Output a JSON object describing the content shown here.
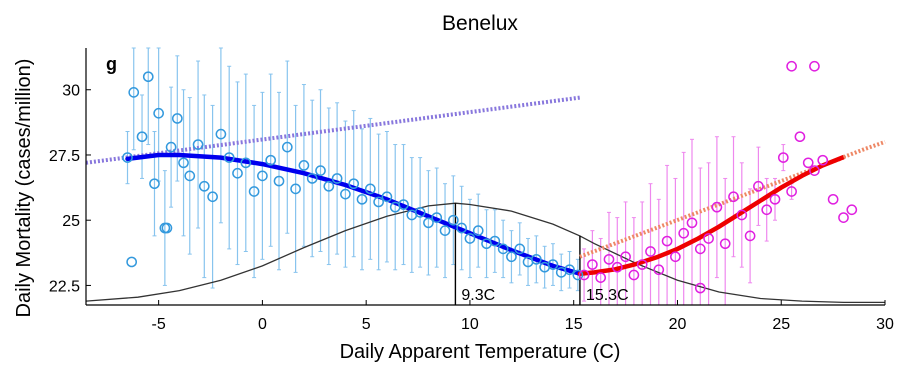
{
  "chart_data": {
    "type": "scatter",
    "title": "Benelux",
    "panel_label": "g",
    "xlabel": "Daily Apparent Temperature (C)",
    "ylabel": "Daily Mortality (cases/million)",
    "xlim": [
      -8.5,
      30
    ],
    "ylim": [
      21.75,
      31.6
    ],
    "xticks": [
      -5,
      0,
      5,
      10,
      15,
      20,
      25,
      30
    ],
    "yticks": [
      22.5,
      25,
      27.5,
      30
    ],
    "ytick_labels": [
      "22.5",
      "25",
      "27.5",
      "30"
    ],
    "grid": false,
    "thresholds": [
      {
        "x": 9.3,
        "label": "9.3C"
      },
      {
        "x": 15.3,
        "label": "15.3C"
      }
    ],
    "colors": {
      "cold_points": "#3399dd",
      "cold_errorbars": "#88c4ee",
      "hot_points": "#e020e0",
      "hot_errorbars": "#ee88ee",
      "cold_fit": "#0000ee",
      "hot_fit": "#ee0000",
      "cold_linear": "#8877dd",
      "hot_linear": "#ee8866",
      "density": "#333333"
    },
    "series": [
      {
        "role": "cold_observations",
        "x": [
          -6.5,
          -6.2,
          -5.8,
          -5.5,
          -5.2,
          -5.0,
          -4.7,
          -4.4,
          -4.1,
          -3.8,
          -3.5,
          -3.1,
          -2.8,
          -2.4,
          -2.0,
          -1.6,
          -1.2,
          -0.8,
          -0.4,
          0.0,
          0.4,
          0.8,
          1.2,
          1.6,
          2.0,
          2.4,
          2.8,
          3.2,
          3.6,
          4.0,
          4.4,
          4.8,
          5.2,
          5.6,
          6.0,
          6.4,
          6.8,
          7.2,
          7.6,
          8.0,
          8.4,
          8.8,
          9.2,
          9.6,
          10.0,
          10.4,
          10.8,
          11.2,
          11.6,
          12.0,
          12.4,
          12.8,
          13.2,
          13.6,
          14.0,
          14.4,
          14.8,
          15.2
        ],
        "y": [
          27.4,
          29.9,
          28.2,
          30.5,
          26.4,
          29.1,
          24.7,
          27.8,
          28.9,
          27.2,
          26.7,
          27.9,
          26.3,
          25.9,
          28.3,
          27.4,
          26.8,
          27.2,
          26.1,
          26.7,
          27.3,
          26.5,
          27.8,
          26.2,
          27.1,
          26.6,
          26.9,
          26.3,
          26.6,
          26.0,
          26.4,
          25.8,
          26.2,
          25.7,
          25.9,
          25.5,
          25.6,
          25.2,
          25.3,
          24.9,
          25.1,
          24.6,
          25.0,
          24.7,
          24.3,
          24.6,
          24.1,
          24.2,
          23.9,
          23.6,
          23.9,
          23.4,
          23.5,
          23.2,
          23.3,
          23.0,
          23.1,
          22.9
        ],
        "error": [
          1.0,
          2.2,
          1.6,
          2.6,
          2.0,
          2.6,
          2.2,
          2.3,
          2.4,
          2.8,
          3.0,
          3.2,
          3.5,
          3.5,
          3.4,
          3.5,
          3.5,
          3.4,
          3.3,
          3.2,
          3.3,
          3.4,
          3.3,
          3.2,
          3.1,
          3.0,
          3.1,
          3.0,
          2.9,
          2.8,
          2.8,
          2.7,
          2.7,
          2.6,
          2.5,
          2.4,
          2.3,
          2.2,
          2.1,
          2.0,
          1.9,
          1.8,
          1.7,
          1.6,
          1.5,
          1.4,
          1.3,
          1.2,
          1.1,
          1.0,
          1.0,
          0.9,
          0.9,
          0.8,
          0.8,
          0.7,
          0.7,
          0.6
        ]
      },
      {
        "role": "hot_observations",
        "x": [
          15.5,
          15.9,
          16.3,
          16.7,
          17.1,
          17.5,
          17.9,
          18.3,
          18.7,
          19.1,
          19.5,
          19.9,
          20.3,
          20.7,
          21.1,
          21.5,
          21.9,
          22.3,
          22.7,
          23.1,
          23.5,
          23.9,
          24.3,
          24.7,
          25.1,
          25.5,
          25.9,
          26.3,
          26.6,
          27.0,
          27.5,
          28.0,
          28.4
        ],
        "y": [
          22.9,
          23.3,
          22.8,
          23.5,
          23.2,
          23.6,
          22.9,
          23.3,
          23.8,
          23.1,
          24.2,
          23.6,
          24.5,
          24.9,
          23.9,
          24.3,
          25.5,
          24.1,
          25.9,
          25.2,
          24.4,
          26.3,
          25.4,
          25.8,
          27.4,
          26.1,
          28.2,
          27.2,
          26.9,
          27.3,
          25.8,
          25.1,
          25.4
        ],
        "error": [
          1.0,
          1.3,
          1.5,
          1.8,
          1.9,
          2.1,
          2.2,
          2.4,
          2.6,
          2.7,
          2.9,
          3.0,
          3.1,
          3.2,
          3.1,
          2.9,
          2.7,
          2.5,
          2.3,
          2.0,
          1.8,
          1.5,
          1.2,
          0.8,
          0.5,
          0.3,
          0.0,
          0.0,
          0.0,
          0.0,
          0.0,
          0.0,
          0.0
        ]
      },
      {
        "role": "outliers",
        "x": [
          -6.3,
          -4.6,
          25.5,
          26.6,
          21.1
        ],
        "y": [
          23.4,
          24.7,
          30.9,
          30.9,
          22.4
        ],
        "error": [
          0,
          0,
          0,
          0,
          0
        ]
      },
      {
        "role": "cold_fit",
        "x": [
          -6.5,
          -5.0,
          -4.0,
          -2.0,
          0.0,
          2.0,
          4.0,
          6.0,
          8.0,
          10.0,
          12.0,
          14.0,
          15.3
        ],
        "y": [
          27.35,
          27.5,
          27.5,
          27.4,
          27.15,
          26.8,
          26.35,
          25.8,
          25.15,
          24.5,
          23.85,
          23.25,
          22.95
        ]
      },
      {
        "role": "hot_fit",
        "x": [
          15.3,
          16.0,
          17.0,
          18.0,
          19.0,
          20.0,
          21.0,
          22.0,
          23.0,
          24.0,
          25.0,
          26.0,
          27.0,
          28.0,
          29.0,
          30.0
        ],
        "y": [
          22.95,
          23.0,
          23.12,
          23.32,
          23.58,
          23.9,
          24.3,
          24.75,
          25.25,
          25.75,
          26.25,
          26.7,
          27.1,
          27.42,
          27.72,
          28.0
        ]
      },
      {
        "role": "cold_linear",
        "x": [
          -8.5,
          15.3
        ],
        "y": [
          27.2,
          29.7
        ]
      },
      {
        "role": "hot_linear",
        "x": [
          15.3,
          28.0
        ],
        "y": [
          23.6,
          27.4
        ]
      },
      {
        "role": "temperature_density",
        "x": [
          -8.5,
          -6,
          -4,
          -2,
          0,
          2,
          4,
          6,
          8,
          9.3,
          10,
          12,
          14,
          15.3,
          16,
          18,
          20,
          22,
          24,
          26,
          28,
          30
        ],
        "y": [
          21.9,
          22.05,
          22.3,
          22.7,
          23.25,
          23.95,
          24.6,
          25.15,
          25.55,
          25.65,
          25.6,
          25.35,
          24.85,
          24.4,
          24.1,
          23.35,
          22.7,
          22.25,
          22.0,
          21.9,
          21.85,
          21.85
        ]
      }
    ]
  }
}
